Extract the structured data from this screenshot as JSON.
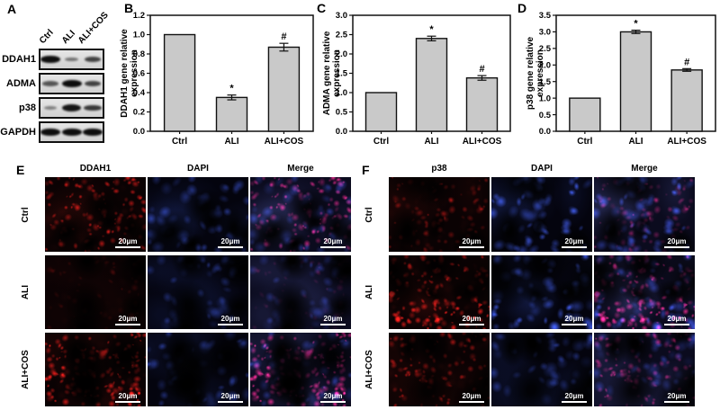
{
  "figure": {
    "western_blot": {
      "panel_label": "A",
      "lanes": [
        "Ctrl",
        "ALI",
        "ALI+COS"
      ],
      "rows": [
        {
          "target": "DDAH1",
          "band_intensities": [
            1.0,
            0.3,
            0.65
          ]
        },
        {
          "target": "ADMA",
          "band_intensities": [
            0.5,
            1.0,
            0.65
          ]
        },
        {
          "target": "p38",
          "band_intensities": [
            0.22,
            0.95,
            0.7
          ]
        },
        {
          "target": "GAPDH",
          "band_intensities": [
            1.0,
            1.0,
            1.0
          ]
        }
      ]
    },
    "if_panels": [
      {
        "panel_label": "E",
        "columns": [
          "DDAH1",
          "DAPI",
          "Merge"
        ],
        "rows": [
          {
            "group": "Ctrl",
            "red_intensity": 0.7,
            "blue_intensity": 0.6
          },
          {
            "group": "ALI",
            "red_intensity": 0.15,
            "blue_intensity": 0.45
          },
          {
            "group": "ALI+COS",
            "red_intensity": 1.0,
            "blue_intensity": 0.55
          }
        ],
        "scale_label": "20μm"
      },
      {
        "panel_label": "F",
        "columns": [
          "p38",
          "DAPI",
          "Merge"
        ],
        "rows": [
          {
            "group": "Ctrl",
            "red_intensity": 0.4,
            "blue_intensity": 0.9
          },
          {
            "group": "ALI",
            "red_intensity": 0.95,
            "blue_intensity": 0.85
          },
          {
            "group": "ALI+COS",
            "red_intensity": 0.6,
            "blue_intensity": 0.5
          }
        ],
        "scale_label": "20μm"
      }
    ],
    "colors": {
      "bar_fill": "#c9c9c9",
      "bar_stroke": "#111111",
      "red_channel": "#c81e18",
      "blue_channel": "#3250c8",
      "merge_magenta": "#d21e6e"
    }
  },
  "chart_data": [
    {
      "type": "bar",
      "panel_label": "B",
      "title": "",
      "ylabel": "DDAH1 gene relative expression",
      "xlabel": "",
      "categories": [
        "Ctrl",
        "ALI",
        "ALI+COS"
      ],
      "values": [
        1.0,
        0.35,
        0.87
      ],
      "errors": [
        0,
        0.025,
        0.04
      ],
      "significance": [
        "",
        "*",
        "#"
      ],
      "ylim": [
        0,
        1.2
      ],
      "ytick_step": 0.2,
      "tick_decimals": 1,
      "grid": false,
      "legend": "none"
    },
    {
      "type": "bar",
      "panel_label": "C",
      "title": "",
      "ylabel": "ADMA gene relative expression",
      "xlabel": "",
      "categories": [
        "Ctrl",
        "ALI",
        "ALI+COS"
      ],
      "values": [
        1.0,
        2.4,
        1.38
      ],
      "errors": [
        0,
        0.06,
        0.06
      ],
      "significance": [
        "",
        "*",
        "#"
      ],
      "ylim": [
        0,
        3.0
      ],
      "ytick_step": 0.5,
      "tick_decimals": 1,
      "grid": false,
      "legend": "none"
    },
    {
      "type": "bar",
      "panel_label": "D",
      "title": "",
      "ylabel": "p38 gene relative expression",
      "xlabel": "",
      "categories": [
        "Ctrl",
        "ALI",
        "ALI+COS"
      ],
      "values": [
        1.0,
        3.0,
        1.85
      ],
      "errors": [
        0,
        0.05,
        0.04
      ],
      "significance": [
        "",
        "*",
        "#"
      ],
      "ylim": [
        0,
        3.5
      ],
      "ytick_step": 0.5,
      "tick_decimals": 1,
      "grid": false,
      "legend": "none"
    }
  ]
}
